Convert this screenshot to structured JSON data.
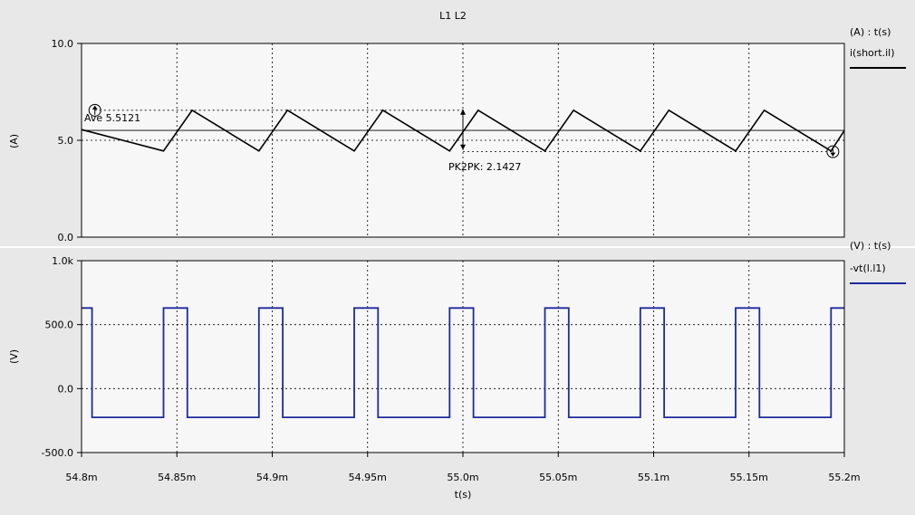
{
  "window": {
    "title": "L1 L2"
  },
  "colors": {
    "background": "#e8e8e8",
    "plot_bg": "#f7f7f7",
    "series1": "#000000",
    "series2": "#1f2a9c"
  },
  "chart_data": [
    {
      "type": "line",
      "title": "L1 L2",
      "header": "(A) : t(s)",
      "ylabel": "(A)",
      "xlabel": "t(s)",
      "xlim": [
        0.0548,
        0.0552
      ],
      "ylim": [
        0,
        10
      ],
      "yticks": [
        0,
        5,
        10
      ],
      "ytick_labels": [
        "0.0",
        "5.0",
        "10.0"
      ],
      "grid": true,
      "legend_position": "right",
      "series": [
        {
          "name": "i(short.il)",
          "color": "#000000",
          "x": [
            0.0548,
            0.054843,
            0.054858,
            0.054893,
            0.054908,
            0.054943,
            0.054958,
            0.054993,
            0.055008,
            0.055043,
            0.055058,
            0.055093,
            0.055108,
            0.055143,
            0.055158,
            0.055193,
            0.0552
          ],
          "y": [
            5.55,
            4.45,
            6.55,
            4.45,
            6.55,
            4.45,
            6.55,
            4.45,
            6.55,
            4.45,
            6.55,
            4.45,
            6.55,
            4.45,
            6.55,
            4.45,
            5.5
          ]
        }
      ],
      "annotations": {
        "average_label": "Ave 5.5121",
        "average_value": 5.5121,
        "pk2pk_label": "PK2PK: 2.1427",
        "max_value": 6.55,
        "min_value": 4.41,
        "marker_max": {
          "x": 0.054807,
          "y": 6.55
        },
        "marker_min": {
          "x": 0.055194,
          "y": 4.41
        },
        "pk2pk_x": 0.055,
        "pk2pk_hi": 6.6,
        "pk2pk_lo": 4.5
      }
    },
    {
      "type": "line",
      "header": "(V) : t(s)",
      "ylabel": "(V)",
      "xlabel": "t(s)",
      "xlim": [
        0.0548,
        0.0552
      ],
      "ylim": [
        -500,
        1000
      ],
      "yticks": [
        -500,
        0,
        500,
        1000
      ],
      "ytick_labels": [
        "-500.0",
        "0.0",
        "500.0",
        "1.0k"
      ],
      "xticks": [
        0.0548,
        0.05485,
        0.0549,
        0.05495,
        0.055,
        0.05505,
        0.0551,
        0.05515,
        0.0552
      ],
      "xtick_labels": [
        "54.8m",
        "54.85m",
        "54.9m",
        "54.95m",
        "55.0m",
        "55.05m",
        "55.1m",
        "55.15m",
        "55.2m"
      ],
      "grid": true,
      "legend_position": "right",
      "series": [
        {
          "name": "-vt(l.l1)",
          "color": "#1f2a9c",
          "high": 630,
          "low": -225,
          "period": 5e-05,
          "on_start": 0.054843,
          "on_width": 1.25e-05
        }
      ]
    }
  ]
}
